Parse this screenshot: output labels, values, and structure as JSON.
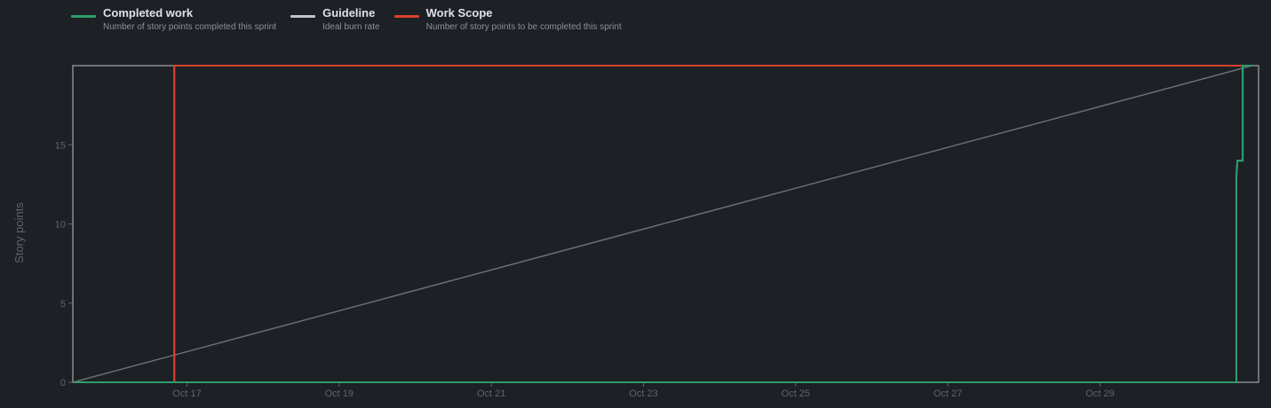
{
  "legend": [
    {
      "name": "Completed work",
      "description": "Number of story points completed this sprint",
      "color": "#2e9e6b"
    },
    {
      "name": "Guideline",
      "description": "Ideal burn rate",
      "color": "#c2c5cc"
    },
    {
      "name": "Work Scope",
      "description": "Number of story points to be completed this sprint",
      "color": "#d9412c"
    }
  ],
  "chart_data": {
    "type": "line",
    "title": "",
    "xlabel": "",
    "ylabel": "Story points",
    "xlim": [
      "2023-10-15T12:00",
      "2023-10-31T02:00"
    ],
    "ylim": [
      0,
      20
    ],
    "yticks": [
      0,
      5,
      10,
      15
    ],
    "xticks": [
      {
        "value": "2023-10-17T00:00",
        "label": "Oct 17"
      },
      {
        "value": "2023-10-19T00:00",
        "label": "Oct 19"
      },
      {
        "value": "2023-10-21T00:00",
        "label": "Oct 21"
      },
      {
        "value": "2023-10-23T00:00",
        "label": "Oct 23"
      },
      {
        "value": "2023-10-25T00:00",
        "label": "Oct 25"
      },
      {
        "value": "2023-10-27T00:00",
        "label": "Oct 27"
      },
      {
        "value": "2023-10-29T00:00",
        "label": "Oct 29"
      }
    ],
    "grid": false,
    "legend_position": "top-left",
    "series": [
      {
        "name": "Guideline",
        "color": "#6b6e73",
        "step": false,
        "points": [
          [
            "2023-10-15T12:00",
            0
          ],
          [
            "2023-10-31T00:00",
            20
          ]
        ]
      },
      {
        "name": "Work Scope",
        "color": "#d9412c",
        "step": true,
        "points": [
          [
            "2023-10-15T12:00",
            0
          ],
          [
            "2023-10-16T20:00",
            0
          ],
          [
            "2023-10-16T20:00",
            20
          ],
          [
            "2023-10-31T00:00",
            20
          ]
        ]
      },
      {
        "name": "Completed work",
        "color": "#2e9e6b",
        "step": true,
        "points": [
          [
            "2023-10-15T12:00",
            0
          ],
          [
            "2023-10-30T19:00",
            0
          ],
          [
            "2023-10-30T19:00",
            13
          ],
          [
            "2023-10-30T19:20",
            14
          ],
          [
            "2023-10-30T21:00",
            14
          ],
          [
            "2023-10-30T21:00",
            20
          ],
          [
            "2023-10-31T00:00",
            20
          ]
        ]
      }
    ]
  }
}
